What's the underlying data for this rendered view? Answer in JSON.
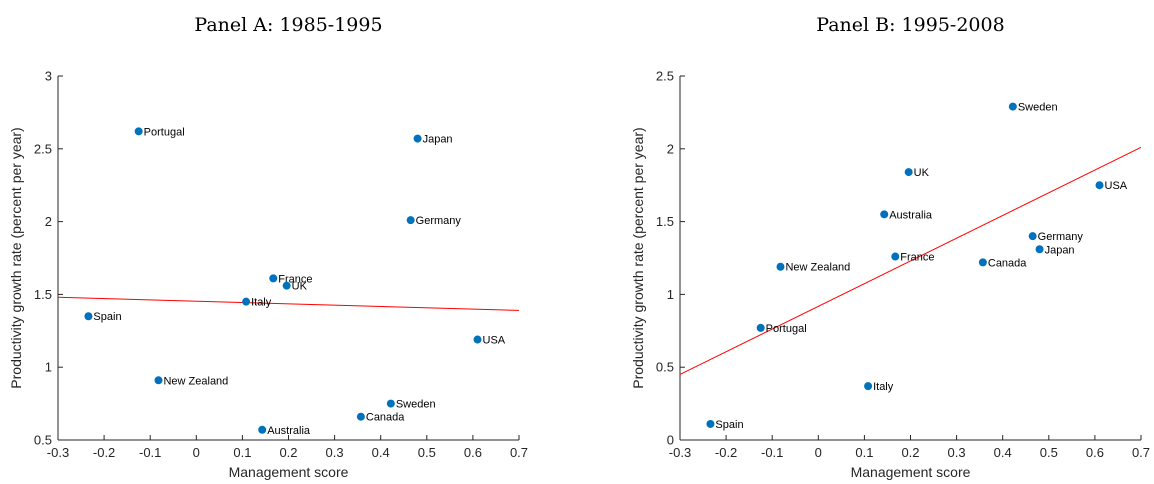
{
  "chart_data": [
    {
      "type": "scatter",
      "title": "Panel A: 1985-1995",
      "xlabel": "Management score",
      "ylabel": "Productivity growth rate (percent per year)",
      "xlim": [
        -0.3,
        0.7
      ],
      "ylim": [
        0.5,
        3.0
      ],
      "xticks": [
        -0.3,
        -0.2,
        -0.1,
        0,
        0.1,
        0.2,
        0.3,
        0.4,
        0.5,
        0.6,
        0.7
      ],
      "xtick_labels": [
        "-0.3",
        "-0.2",
        "-0.1",
        "0",
        "0.1",
        "0.2",
        "0.3",
        "0.4",
        "0.5",
        "0.6",
        "0.7"
      ],
      "yticks": [
        0.5,
        1,
        1.5,
        2,
        2.5,
        3
      ],
      "ytick_labels": [
        "0.5",
        "1",
        "1.5",
        "2",
        "2.5",
        "3"
      ],
      "point_color": "#0072BD",
      "fit_color": "#FF0000",
      "fit_line": {
        "x": [
          -0.3,
          0.7
        ],
        "y": [
          1.48,
          1.39
        ]
      },
      "points": [
        {
          "label": "Portugal",
          "x": -0.125,
          "y": 2.62
        },
        {
          "label": "Japan",
          "x": 0.48,
          "y": 2.57
        },
        {
          "label": "Germany",
          "x": 0.465,
          "y": 2.01
        },
        {
          "label": "France",
          "x": 0.167,
          "y": 1.61
        },
        {
          "label": "UK",
          "x": 0.196,
          "y": 1.56
        },
        {
          "label": "Italy",
          "x": 0.108,
          "y": 1.45
        },
        {
          "label": "Spain",
          "x": -0.234,
          "y": 1.35
        },
        {
          "label": "USA",
          "x": 0.61,
          "y": 1.19
        },
        {
          "label": "New Zealand",
          "x": -0.082,
          "y": 0.91
        },
        {
          "label": "Sweden",
          "x": 0.422,
          "y": 0.75
        },
        {
          "label": "Canada",
          "x": 0.357,
          "y": 0.66
        },
        {
          "label": "Australia",
          "x": 0.143,
          "y": 0.57
        }
      ]
    },
    {
      "type": "scatter",
      "title": "Panel B: 1995-2008",
      "xlabel": "Management score",
      "ylabel": "Productivity growth rate (percent per year)",
      "xlim": [
        -0.3,
        0.7
      ],
      "ylim": [
        0,
        2.5
      ],
      "xticks": [
        -0.3,
        -0.2,
        -0.1,
        0,
        0.1,
        0.2,
        0.3,
        0.4,
        0.5,
        0.6,
        0.7
      ],
      "xtick_labels": [
        "-0.3",
        "-0.2",
        "-0.1",
        "0",
        "0.1",
        "0.2",
        "0.3",
        "0.4",
        "0.5",
        "0.6",
        "0.7"
      ],
      "yticks": [
        0,
        0.5,
        1,
        1.5,
        2,
        2.5
      ],
      "ytick_labels": [
        "0",
        "0.5",
        "1",
        "1.5",
        "2",
        "2.5"
      ],
      "point_color": "#0072BD",
      "fit_color": "#FF0000",
      "fit_line": {
        "x": [
          -0.3,
          0.7
        ],
        "y": [
          0.45,
          2.01
        ]
      },
      "points": [
        {
          "label": "Sweden",
          "x": 0.422,
          "y": 2.29
        },
        {
          "label": "UK",
          "x": 0.196,
          "y": 1.84
        },
        {
          "label": "USA",
          "x": 0.61,
          "y": 1.75
        },
        {
          "label": "Australia",
          "x": 0.143,
          "y": 1.55
        },
        {
          "label": "Germany",
          "x": 0.465,
          "y": 1.4
        },
        {
          "label": "Japan",
          "x": 0.48,
          "y": 1.31
        },
        {
          "label": "France",
          "x": 0.167,
          "y": 1.26
        },
        {
          "label": "Canada",
          "x": 0.357,
          "y": 1.22
        },
        {
          "label": "New Zealand",
          "x": -0.082,
          "y": 1.19
        },
        {
          "label": "Portugal",
          "x": -0.125,
          "y": 0.77
        },
        {
          "label": "Italy",
          "x": 0.108,
          "y": 0.37
        },
        {
          "label": "Spain",
          "x": -0.234,
          "y": 0.11
        }
      ]
    }
  ]
}
